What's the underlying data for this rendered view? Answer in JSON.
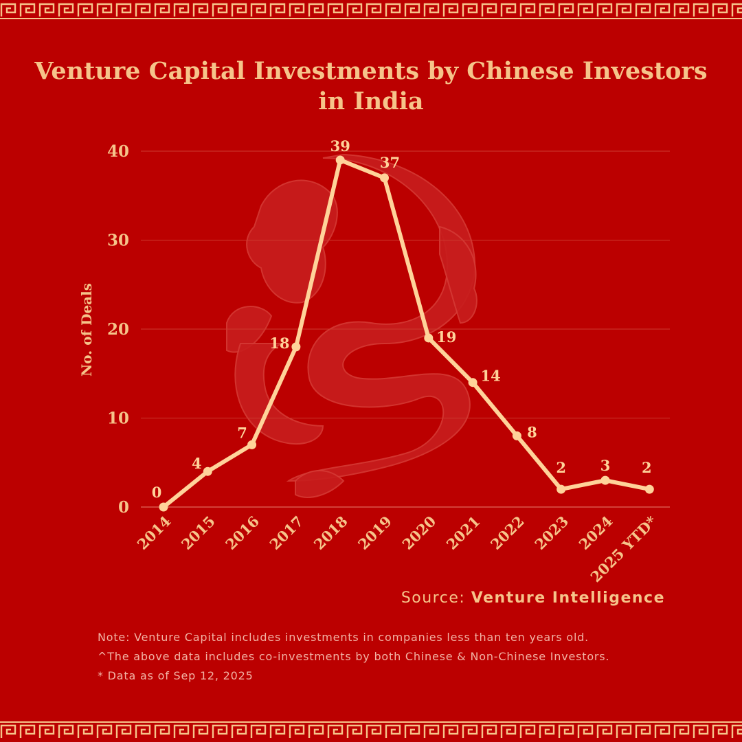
{
  "title": "Venture Capital Investments by Chinese Investors in India",
  "source": {
    "prefix": "Source: ",
    "name": "Venture Intelligence"
  },
  "notes": [
    "Note: Venture Capital includes investments in companies less than ten years old.",
    "^The above data includes co-investments by both Chinese & Non-Chinese Investors.",
    "* Data as of Sep 12, 2025"
  ],
  "colors": {
    "background": "#bb0000",
    "accent": "#f6c48a",
    "line": "#ffd39a",
    "notes": "#f2b3a4"
  },
  "decoration": "dragon-watermark",
  "chart_data": {
    "type": "line",
    "title": "Venture Capital Investments by Chinese Investors in India",
    "xlabel": "",
    "ylabel": "No. of Deals",
    "categories": [
      "2014",
      "2015",
      "2016",
      "2017",
      "2018",
      "2019",
      "2020",
      "2021",
      "2022",
      "2023",
      "2024",
      "2025 YTD*"
    ],
    "values": [
      0,
      4,
      7,
      18,
      39,
      37,
      19,
      14,
      8,
      2,
      3,
      2
    ],
    "data_labels": [
      "0",
      "4",
      "7",
      "18",
      "39",
      "37",
      "19",
      "14",
      "8",
      "2",
      "3",
      "2"
    ],
    "ylim": [
      0,
      40
    ],
    "yticks": [
      0,
      10,
      20,
      30,
      40
    ],
    "grid": true,
    "legend": "none"
  }
}
